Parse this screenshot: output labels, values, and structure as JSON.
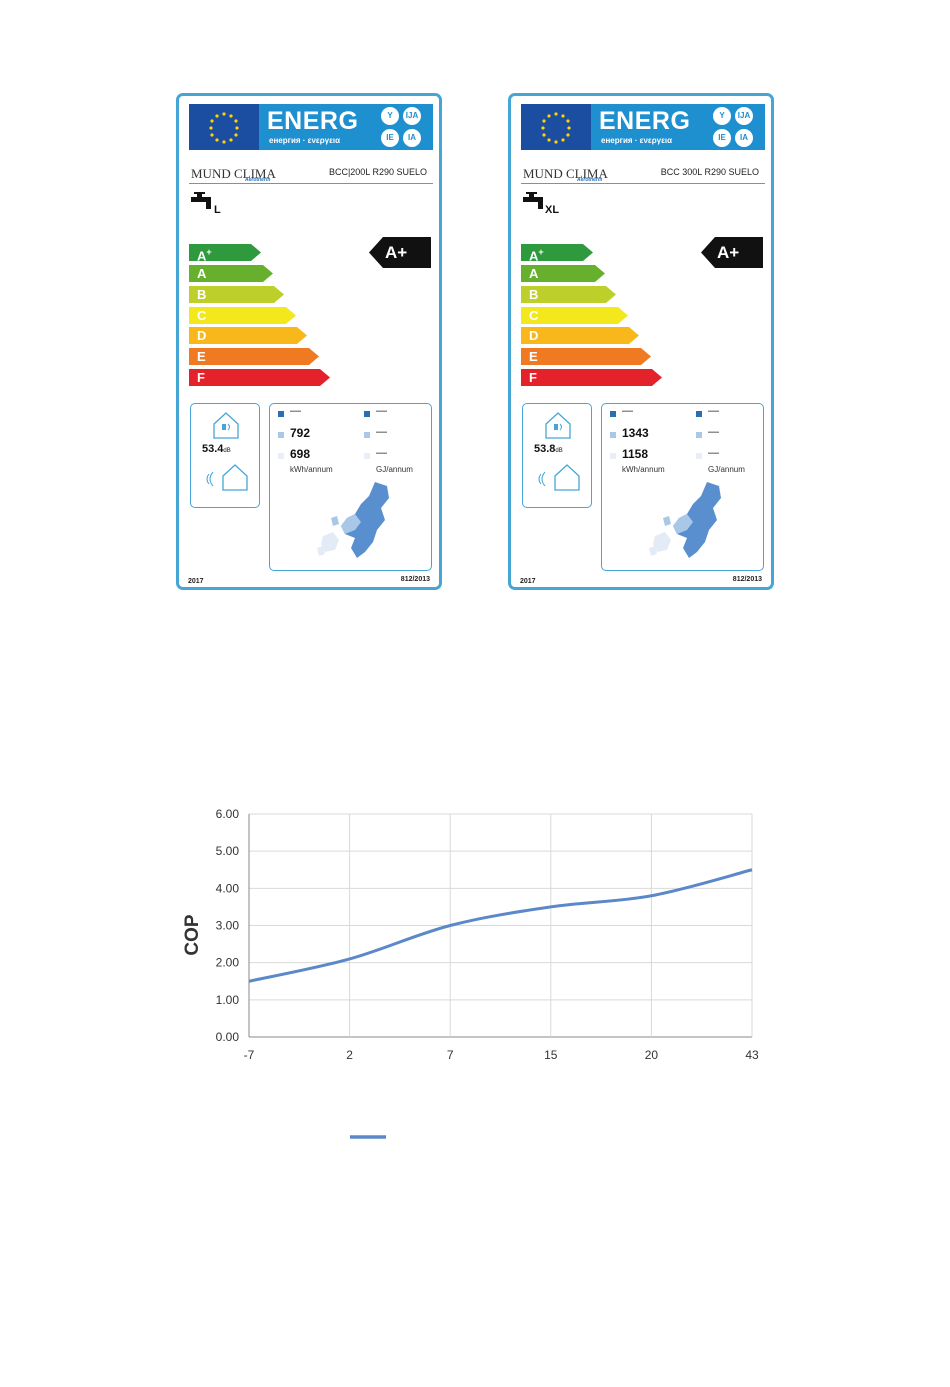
{
  "labels": [
    {
      "header": {
        "energ": "ENERG",
        "languages": "енергия · ενεργεια",
        "badges": [
          "Y",
          "IJA",
          "IE",
          "IA"
        ]
      },
      "brand": "MUND  CLIMA",
      "brand_sub": "Aerotherm",
      "model": "BCC|200L R290 SUELO",
      "load_profile": "L",
      "classes": [
        "A+",
        "A",
        "B",
        "C",
        "D",
        "E",
        "F"
      ],
      "rating": "A+",
      "sound_value": "53.4",
      "sound_unit": "dB",
      "cons_kwh_1": "792",
      "cons_kwh_2": "698",
      "dash": "—",
      "unit_kwh": "kWh/annum",
      "unit_gj": "GJ/annum",
      "year": "2017",
      "regulation": "812/2013"
    },
    {
      "header": {
        "energ": "ENERG",
        "languages": "енергия · ενεργεια",
        "badges": [
          "Y",
          "IJA",
          "IE",
          "IA"
        ]
      },
      "brand": "MUND  CLIMA",
      "brand_sub": "Aerotherm",
      "model": "BCC 300L R290 SUELO",
      "load_profile": "XL",
      "classes": [
        "A+",
        "A",
        "B",
        "C",
        "D",
        "E",
        "F"
      ],
      "rating": "A+",
      "sound_value": "53.8",
      "sound_unit": "dB",
      "cons_kwh_1": "1343",
      "cons_kwh_2": "1158",
      "dash": "—",
      "unit_kwh": "kWh/annum",
      "unit_gj": "GJ/annum",
      "year": "2017",
      "regulation": "812/2013"
    }
  ],
  "colors": {
    "class_colors": [
      "#2f9a3d",
      "#67b02e",
      "#bccf2a",
      "#f2e81c",
      "#f8b71a",
      "#ef7a22",
      "#e3222b"
    ],
    "label_border": "#45a6d5",
    "series": "#5a88c8"
  },
  "chart_data": {
    "type": "line",
    "title": "",
    "xlabel": "",
    "ylabel": "COP",
    "categories": [
      "-7",
      "2",
      "7",
      "15",
      "20",
      "43"
    ],
    "series": [
      {
        "values": [
          1.5,
          2.1,
          3.0,
          3.5,
          3.8,
          4.5
        ]
      }
    ],
    "ylim": [
      0,
      6
    ],
    "yticks": [
      "0.00",
      "1.00",
      "2.00",
      "3.00",
      "4.00",
      "5.00",
      "6.00"
    ],
    "grid": true,
    "legend": "bottom"
  }
}
